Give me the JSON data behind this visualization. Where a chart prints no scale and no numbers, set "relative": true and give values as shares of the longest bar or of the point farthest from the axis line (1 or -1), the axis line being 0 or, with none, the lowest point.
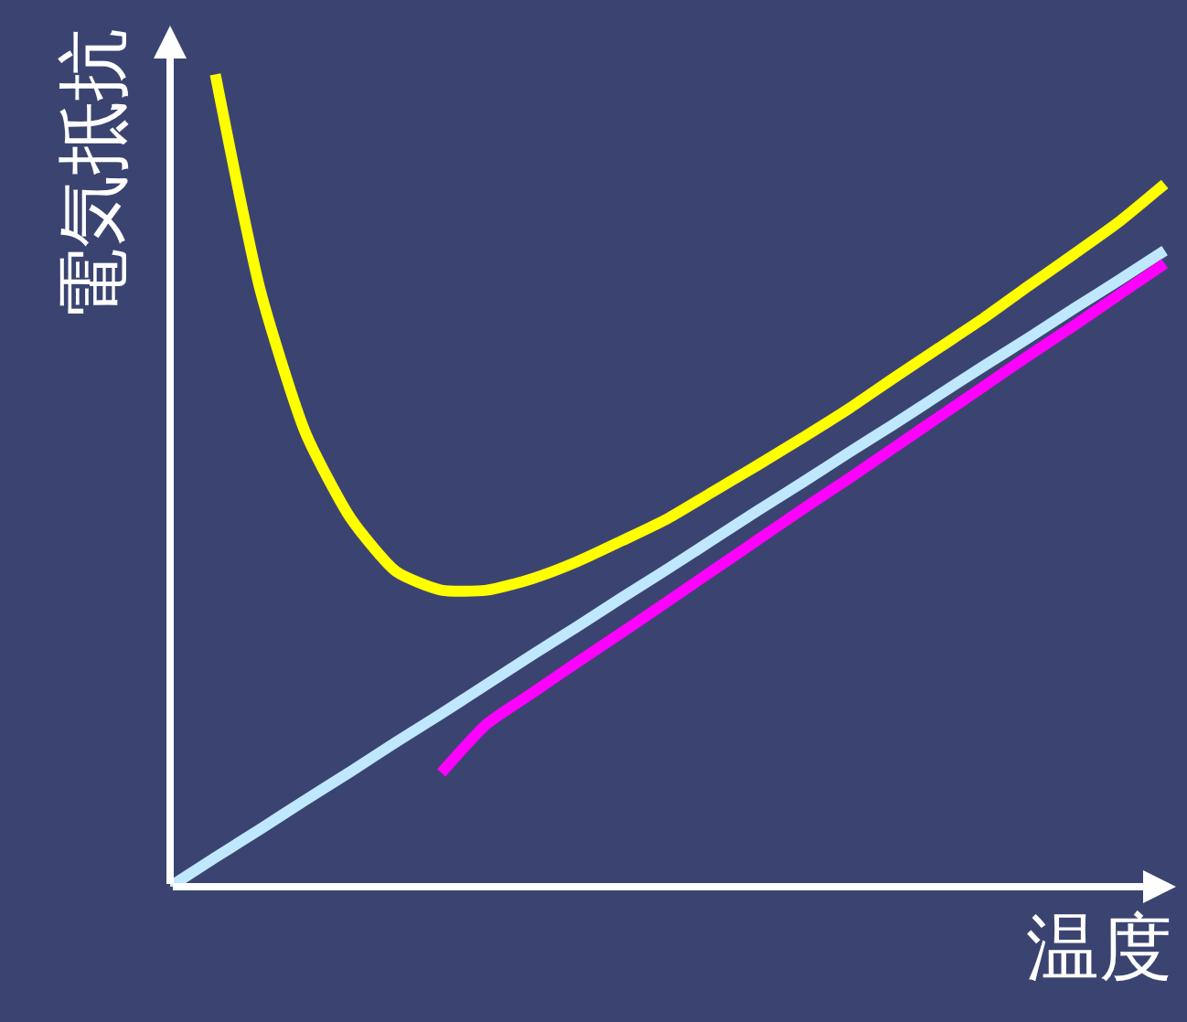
{
  "chart_data": {
    "type": "line",
    "relative": true,
    "xlabel": "温度",
    "ylabel": "電気抵抗",
    "grid": false,
    "marker": "none",
    "line_style": "solid",
    "categories": [
      null,
      null,
      null,
      null,
      null,
      null,
      null,
      null,
      null,
      null,
      null,
      null,
      null,
      null,
      null,
      null,
      null,
      null,
      null,
      null,
      null,
      null,
      null
    ],
    "series": [
      {
        "color": "#ffff00",
        "values": [
          null,
          1,
          0.733,
          0.558,
          0.453,
          0.388,
          0.365,
          0.365,
          0.379,
          0.4,
          0.426,
          0.453,
          0.486,
          0.519,
          0.553,
          0.588,
          0.626,
          0.663,
          0.7,
          0.74,
          0.779,
          0.819,
          0.865
        ]
      },
      {
        "color": "#bfe8ff",
        "values": [
          0,
          0.036,
          0.071,
          0.107,
          0.142,
          0.178,
          0.213,
          0.249,
          0.285,
          0.32,
          0.356,
          0.391,
          0.427,
          0.463,
          0.498,
          0.534,
          0.569,
          0.605,
          0.641,
          0.676,
          0.712,
          0.747,
          0.783
        ]
      },
      {
        "color": "#ff00ff",
        "values": [
          null,
          null,
          null,
          null,
          null,
          null,
          0.14,
          0.2,
          0.238,
          0.276,
          0.313,
          0.351,
          0.389,
          0.427,
          0.465,
          0.502,
          0.54,
          0.578,
          0.616,
          0.654,
          0.691,
          0.729,
          0.767
        ]
      }
    ]
  }
}
